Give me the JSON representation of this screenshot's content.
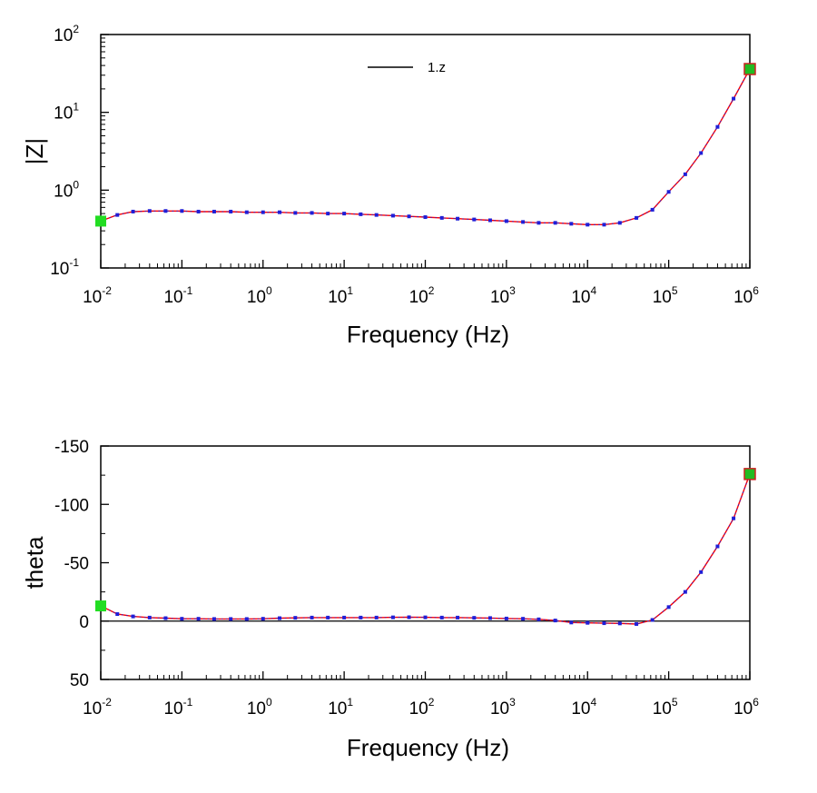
{
  "chart_data": [
    {
      "type": "line",
      "xlabel": "Frequency (Hz)",
      "ylabel": "|Z|",
      "xscale": "log",
      "yscale": "log",
      "xlim": [
        0.01,
        1000000
      ],
      "ylim": [
        0.1,
        100
      ],
      "x_tick_labels": [
        {
          "base": "10",
          "exp": "-2"
        },
        {
          "base": "10",
          "exp": "-1"
        },
        {
          "base": "10",
          "exp": "0"
        },
        {
          "base": "10",
          "exp": "1"
        },
        {
          "base": "10",
          "exp": "2"
        },
        {
          "base": "10",
          "exp": "3"
        },
        {
          "base": "10",
          "exp": "4"
        },
        {
          "base": "10",
          "exp": "5"
        },
        {
          "base": "10",
          "exp": "6"
        }
      ],
      "y_tick_labels": [
        {
          "base": "10",
          "exp": "2"
        },
        {
          "base": "10",
          "exp": "1"
        },
        {
          "base": "10",
          "exp": "0"
        },
        {
          "base": "10",
          "exp": "-1"
        }
      ],
      "legend": {
        "label": "1.z",
        "position": "top-center"
      },
      "series": [
        {
          "name": "1.z",
          "marker_color": "#1f1fd8",
          "fit_color": "#ff0000",
          "points": [
            [
              0.01,
              0.4
            ],
            [
              0.016,
              0.48
            ],
            [
              0.025,
              0.53
            ],
            [
              0.04,
              0.54
            ],
            [
              0.063,
              0.54
            ],
            [
              0.1,
              0.54
            ],
            [
              0.16,
              0.53
            ],
            [
              0.25,
              0.53
            ],
            [
              0.4,
              0.53
            ],
            [
              0.63,
              0.52
            ],
            [
              1,
              0.52
            ],
            [
              1.6,
              0.52
            ],
            [
              2.5,
              0.51
            ],
            [
              4,
              0.51
            ],
            [
              6.3,
              0.5
            ],
            [
              10,
              0.5
            ],
            [
              16,
              0.49
            ],
            [
              25,
              0.48
            ],
            [
              40,
              0.47
            ],
            [
              63,
              0.46
            ],
            [
              100,
              0.45
            ],
            [
              160,
              0.44
            ],
            [
              250,
              0.43
            ],
            [
              400,
              0.42
            ],
            [
              630,
              0.41
            ],
            [
              1000,
              0.4
            ],
            [
              1600,
              0.39
            ],
            [
              2500,
              0.38
            ],
            [
              4000,
              0.38
            ],
            [
              6300,
              0.37
            ],
            [
              10000,
              0.36
            ],
            [
              16000,
              0.36
            ],
            [
              25000,
              0.38
            ],
            [
              40000,
              0.44
            ],
            [
              63000,
              0.56
            ],
            [
              100000,
              0.95
            ],
            [
              160000,
              1.6
            ],
            [
              250000,
              3.0
            ],
            [
              400000,
              6.5
            ],
            [
              630000,
              15
            ],
            [
              1000000,
              36
            ]
          ]
        }
      ],
      "cursor_markers": [
        {
          "x": 0.01,
          "y": 0.4,
          "color": "#22dd22"
        },
        {
          "x": 1000000,
          "y": 36,
          "color": "#22bb22",
          "border": "#cc2222"
        }
      ]
    },
    {
      "type": "line",
      "xlabel": "Frequency (Hz)",
      "ylabel": "theta",
      "xscale": "log",
      "yscale": "linear",
      "y_inverted": true,
      "xlim": [
        0.01,
        1000000
      ],
      "ylim": [
        50,
        -150
      ],
      "x_tick_labels": [
        {
          "base": "10",
          "exp": "-2"
        },
        {
          "base": "10",
          "exp": "-1"
        },
        {
          "base": "10",
          "exp": "0"
        },
        {
          "base": "10",
          "exp": "1"
        },
        {
          "base": "10",
          "exp": "2"
        },
        {
          "base": "10",
          "exp": "3"
        },
        {
          "base": "10",
          "exp": "4"
        },
        {
          "base": "10",
          "exp": "5"
        },
        {
          "base": "10",
          "exp": "6"
        }
      ],
      "y_ticks": [
        -150,
        -100,
        -50,
        0,
        50
      ],
      "y_tick_labels": [
        "-150",
        "-100",
        "-50",
        "0",
        "50"
      ],
      "zero_line": true,
      "series": [
        {
          "name": "1.z",
          "marker_color": "#1f1fd8",
          "fit_color": "#ff0000",
          "points": [
            [
              0.01,
              -13
            ],
            [
              0.016,
              -6
            ],
            [
              0.025,
              -4
            ],
            [
              0.04,
              -3
            ],
            [
              0.063,
              -2.5
            ],
            [
              0.1,
              -2
            ],
            [
              0.16,
              -2
            ],
            [
              0.25,
              -1.8
            ],
            [
              0.4,
              -1.8
            ],
            [
              0.63,
              -1.8
            ],
            [
              1,
              -2
            ],
            [
              1.6,
              -2.5
            ],
            [
              2.5,
              -2.8
            ],
            [
              4,
              -3
            ],
            [
              6.3,
              -3
            ],
            [
              10,
              -3
            ],
            [
              16,
              -3
            ],
            [
              25,
              -3
            ],
            [
              40,
              -3.2
            ],
            [
              63,
              -3.3
            ],
            [
              100,
              -3.2
            ],
            [
              160,
              -3
            ],
            [
              250,
              -3
            ],
            [
              400,
              -2.8
            ],
            [
              630,
              -2.6
            ],
            [
              1000,
              -2.2
            ],
            [
              1600,
              -2
            ],
            [
              2500,
              -1.5
            ],
            [
              4000,
              -0.5
            ],
            [
              6300,
              1.2
            ],
            [
              10000,
              1.5
            ],
            [
              16000,
              1.8
            ],
            [
              25000,
              2
            ],
            [
              40000,
              2.5
            ],
            [
              63000,
              -1
            ],
            [
              100000,
              -12
            ],
            [
              160000,
              -25
            ],
            [
              250000,
              -42
            ],
            [
              400000,
              -64
            ],
            [
              630000,
              -88
            ],
            [
              1000000,
              -126
            ]
          ]
        }
      ],
      "cursor_markers": [
        {
          "x": 0.01,
          "y": -13,
          "color": "#22dd22"
        },
        {
          "x": 1000000,
          "y": -126,
          "color": "#22bb22",
          "border": "#cc2222"
        }
      ]
    }
  ]
}
